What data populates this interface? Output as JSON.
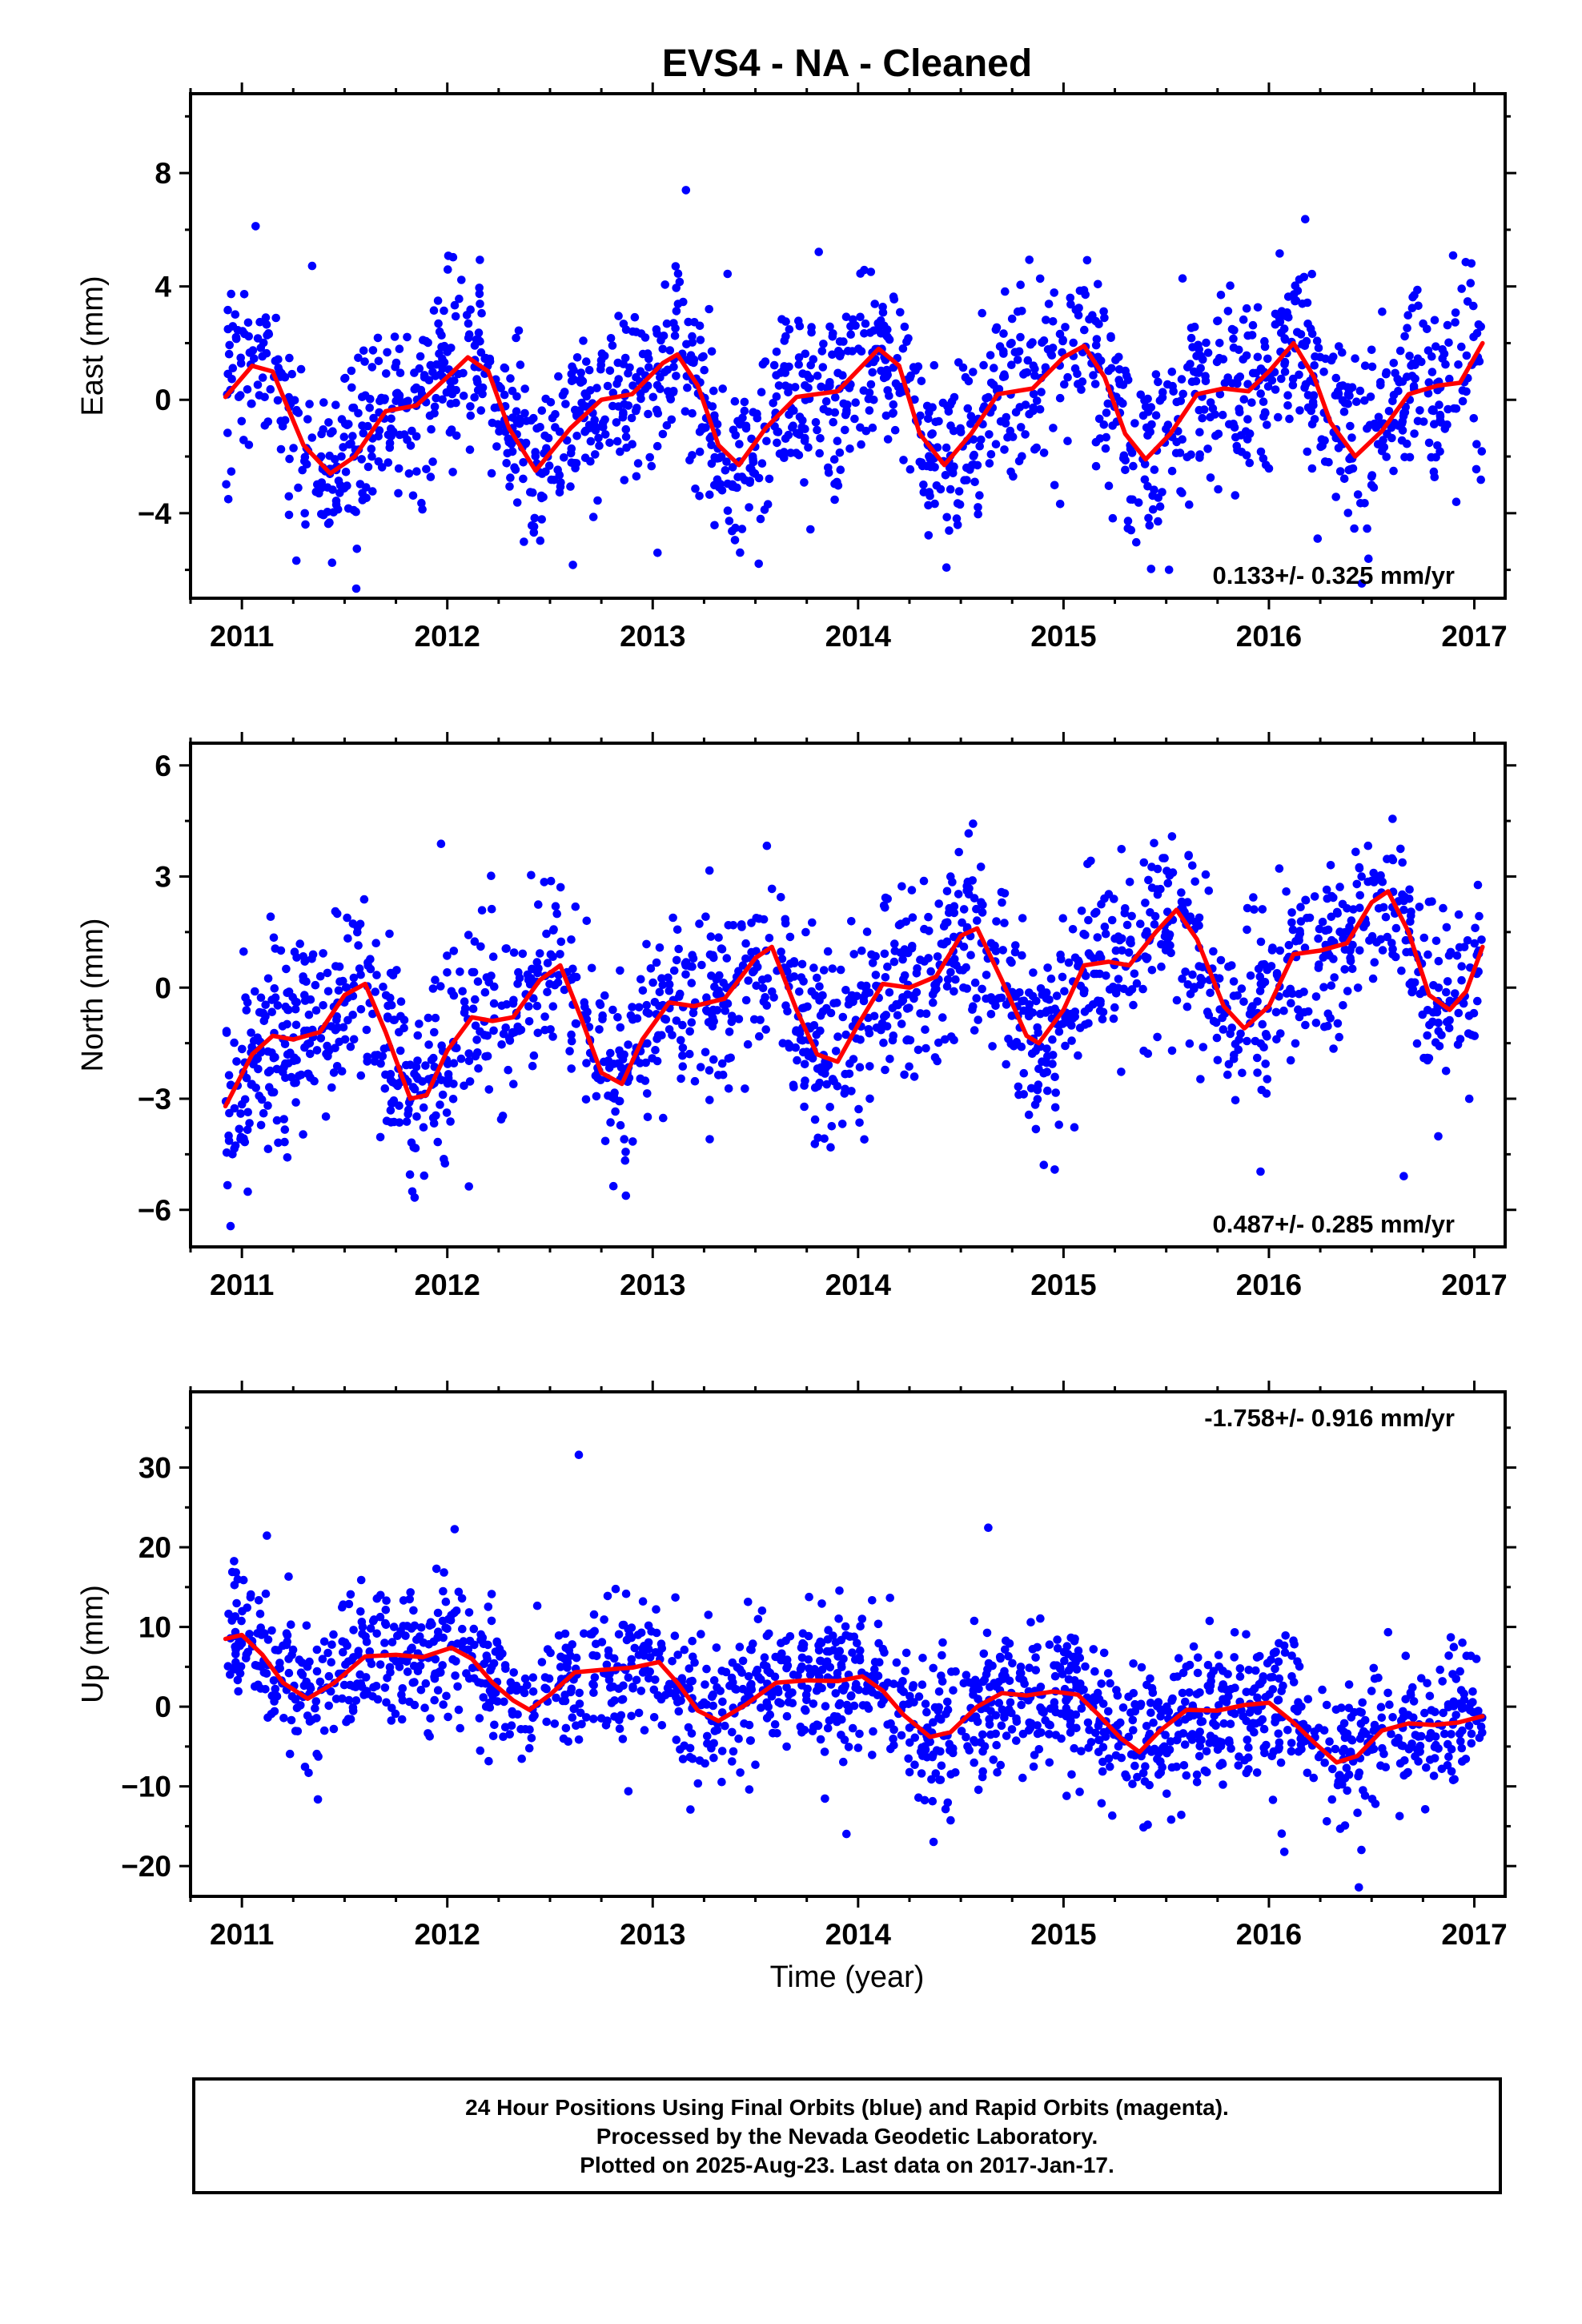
{
  "title": "EVS4  - NA - Cleaned",
  "xlabel": "Time (year)",
  "caption": {
    "line1": "24 Hour Positions Using Final Orbits (blue) and Rapid Orbits (magenta).",
    "line2": "Processed by the Nevada Geodetic Laboratory.",
    "line3": "Plotted on 2025-Aug-23. Last data on 2017-Jan-17."
  },
  "colors": {
    "points": "#0000ff",
    "model": "#ff0000",
    "frame": "#000000"
  },
  "chart_data": [
    {
      "type": "scatter",
      "ylabel": "East (mm)",
      "xlim": [
        2010.75,
        2017.15
      ],
      "ylim": [
        -7.0,
        10.8
      ],
      "yticks": [
        -4,
        0,
        4,
        8
      ],
      "yticks_minor": [
        -6,
        -2,
        2,
        6,
        10
      ],
      "xticks": [
        2011,
        2012,
        2013,
        2014,
        2015,
        2016,
        2017
      ],
      "rate": "0.133+/- 0.325 mm/yr",
      "rate_position": "bottom-right",
      "series": [
        {
          "kind": "points",
          "generated_from": {
            "time_range": [
              2010.92,
              2017.04
            ],
            "noise": 1.6,
            "seed": 11,
            "count": 1700
          }
        },
        {
          "kind": "model",
          "curve": [
            [
              2010.92,
              0.1
            ],
            [
              2011.05,
              1.2
            ],
            [
              2011.15,
              1.0
            ],
            [
              2011.3,
              -1.6
            ],
            [
              2011.43,
              -2.6
            ],
            [
              2011.55,
              -2.0
            ],
            [
              2011.7,
              -0.4
            ],
            [
              2011.85,
              -0.2
            ],
            [
              2012.0,
              0.8
            ],
            [
              2012.1,
              1.5
            ],
            [
              2012.2,
              1.0
            ],
            [
              2012.3,
              -1.0
            ],
            [
              2012.43,
              -2.5
            ],
            [
              2012.6,
              -1.0
            ],
            [
              2012.75,
              0.0
            ],
            [
              2012.9,
              0.2
            ],
            [
              2013.05,
              1.3
            ],
            [
              2013.12,
              1.6
            ],
            [
              2013.22,
              0.5
            ],
            [
              2013.32,
              -1.6
            ],
            [
              2013.42,
              -2.3
            ],
            [
              2013.55,
              -1.0
            ],
            [
              2013.7,
              0.1
            ],
            [
              2013.9,
              0.3
            ],
            [
              2014.1,
              1.8
            ],
            [
              2014.2,
              1.2
            ],
            [
              2014.3,
              -1.2
            ],
            [
              2014.42,
              -2.3
            ],
            [
              2014.55,
              -1.2
            ],
            [
              2014.68,
              0.2
            ],
            [
              2014.85,
              0.4
            ],
            [
              2015.0,
              1.5
            ],
            [
              2015.1,
              1.9
            ],
            [
              2015.2,
              0.8
            ],
            [
              2015.3,
              -1.2
            ],
            [
              2015.4,
              -2.1
            ],
            [
              2015.52,
              -1.2
            ],
            [
              2015.65,
              0.2
            ],
            [
              2015.78,
              0.4
            ],
            [
              2015.9,
              0.3
            ],
            [
              2016.0,
              1.0
            ],
            [
              2016.12,
              2.0
            ],
            [
              2016.22,
              0.8
            ],
            [
              2016.3,
              -0.8
            ],
            [
              2016.42,
              -2.0
            ],
            [
              2016.55,
              -1.1
            ],
            [
              2016.68,
              0.2
            ],
            [
              2016.82,
              0.5
            ],
            [
              2016.93,
              0.6
            ],
            [
              2017.04,
              2.0
            ]
          ]
        }
      ]
    },
    {
      "type": "scatter",
      "ylabel": "North (mm)",
      "xlim": [
        2010.75,
        2017.15
      ],
      "ylim": [
        -7.0,
        6.6
      ],
      "yticks": [
        -6,
        -3,
        0,
        3,
        6
      ],
      "yticks_minor": [
        -4.5,
        -1.5,
        1.5,
        4.5
      ],
      "xticks": [
        2011,
        2012,
        2013,
        2014,
        2015,
        2016,
        2017
      ],
      "rate": "0.487+/- 0.285 mm/yr",
      "rate_position": "bottom-right",
      "series": [
        {
          "kind": "points",
          "generated_from": {
            "time_range": [
              2010.92,
              2017.04
            ],
            "noise": 1.25,
            "seed": 23,
            "count": 1700
          }
        },
        {
          "kind": "model",
          "curve": [
            [
              2010.92,
              -3.2
            ],
            [
              2011.05,
              -1.8
            ],
            [
              2011.15,
              -1.3
            ],
            [
              2011.25,
              -1.4
            ],
            [
              2011.38,
              -1.2
            ],
            [
              2011.5,
              -0.2
            ],
            [
              2011.6,
              0.1
            ],
            [
              2011.7,
              -1.2
            ],
            [
              2011.82,
              -3.0
            ],
            [
              2011.9,
              -2.9
            ],
            [
              2012.0,
              -1.7
            ],
            [
              2012.12,
              -0.8
            ],
            [
              2012.22,
              -0.9
            ],
            [
              2012.32,
              -0.8
            ],
            [
              2012.45,
              0.2
            ],
            [
              2012.55,
              0.6
            ],
            [
              2012.65,
              -0.8
            ],
            [
              2012.75,
              -2.3
            ],
            [
              2012.85,
              -2.6
            ],
            [
              2012.95,
              -1.4
            ],
            [
              2013.08,
              -0.4
            ],
            [
              2013.2,
              -0.5
            ],
            [
              2013.35,
              -0.3
            ],
            [
              2013.5,
              0.8
            ],
            [
              2013.58,
              1.1
            ],
            [
              2013.7,
              -0.6
            ],
            [
              2013.8,
              -1.8
            ],
            [
              2013.9,
              -2.0
            ],
            [
              2014.0,
              -1.0
            ],
            [
              2014.12,
              0.1
            ],
            [
              2014.25,
              0.0
            ],
            [
              2014.38,
              0.3
            ],
            [
              2014.5,
              1.4
            ],
            [
              2014.58,
              1.6
            ],
            [
              2014.7,
              0.2
            ],
            [
              2014.82,
              -1.3
            ],
            [
              2014.88,
              -1.5
            ],
            [
              2015.0,
              -0.6
            ],
            [
              2015.1,
              0.6
            ],
            [
              2015.22,
              0.7
            ],
            [
              2015.32,
              0.6
            ],
            [
              2015.45,
              1.5
            ],
            [
              2015.55,
              2.1
            ],
            [
              2015.65,
              1.3
            ],
            [
              2015.78,
              -0.5
            ],
            [
              2015.88,
              -1.1
            ],
            [
              2016.0,
              -0.5
            ],
            [
              2016.12,
              0.9
            ],
            [
              2016.25,
              1.0
            ],
            [
              2016.38,
              1.2
            ],
            [
              2016.5,
              2.3
            ],
            [
              2016.58,
              2.6
            ],
            [
              2016.68,
              1.5
            ],
            [
              2016.78,
              -0.2
            ],
            [
              2016.88,
              -0.6
            ],
            [
              2016.96,
              -0.1
            ],
            [
              2017.04,
              1.1
            ]
          ]
        }
      ]
    },
    {
      "type": "scatter",
      "ylabel": "Up (mm)",
      "xlim": [
        2010.75,
        2017.15
      ],
      "ylim": [
        -23.8,
        39.5
      ],
      "yticks": [
        -20,
        -10,
        0,
        10,
        20,
        30
      ],
      "yticks_minor": [
        -15,
        -5,
        5,
        15,
        25,
        35
      ],
      "xticks": [
        2011,
        2012,
        2013,
        2014,
        2015,
        2016,
        2017
      ],
      "rate": "-1.758+/- 0.916 mm/yr",
      "rate_position": "top-right",
      "series": [
        {
          "kind": "points",
          "generated_from": {
            "time_range": [
              2010.92,
              2017.04
            ],
            "noise": 4.6,
            "seed": 37,
            "count": 1700
          }
        },
        {
          "kind": "model",
          "curve": [
            [
              2010.92,
              8.5
            ],
            [
              2011.0,
              9.0
            ],
            [
              2011.1,
              6.5
            ],
            [
              2011.2,
              3.0
            ],
            [
              2011.32,
              1.0
            ],
            [
              2011.45,
              3.0
            ],
            [
              2011.6,
              6.3
            ],
            [
              2011.75,
              6.5
            ],
            [
              2011.88,
              6.2
            ],
            [
              2012.02,
              7.4
            ],
            [
              2012.12,
              6.0
            ],
            [
              2012.22,
              3.0
            ],
            [
              2012.32,
              0.8
            ],
            [
              2012.4,
              -0.4
            ],
            [
              2012.5,
              1.5
            ],
            [
              2012.62,
              4.3
            ],
            [
              2012.75,
              4.6
            ],
            [
              2012.9,
              4.9
            ],
            [
              2013.03,
              5.6
            ],
            [
              2013.12,
              3.0
            ],
            [
              2013.22,
              -0.5
            ],
            [
              2013.32,
              -1.8
            ],
            [
              2013.45,
              0.2
            ],
            [
              2013.6,
              3.0
            ],
            [
              2013.75,
              3.3
            ],
            [
              2013.9,
              3.2
            ],
            [
              2014.02,
              3.8
            ],
            [
              2014.12,
              2.0
            ],
            [
              2014.22,
              -1.0
            ],
            [
              2014.35,
              -3.8
            ],
            [
              2014.45,
              -3.2
            ],
            [
              2014.58,
              0.0
            ],
            [
              2014.7,
              1.7
            ],
            [
              2014.82,
              1.4
            ],
            [
              2014.95,
              1.9
            ],
            [
              2015.07,
              1.5
            ],
            [
              2015.17,
              -1.0
            ],
            [
              2015.28,
              -4.0
            ],
            [
              2015.37,
              -5.7
            ],
            [
              2015.47,
              -3.0
            ],
            [
              2015.6,
              -0.4
            ],
            [
              2015.75,
              -0.5
            ],
            [
              2015.88,
              0.2
            ],
            [
              2016.0,
              0.5
            ],
            [
              2016.12,
              -2.0
            ],
            [
              2016.22,
              -4.5
            ],
            [
              2016.33,
              -7.0
            ],
            [
              2016.43,
              -6.2
            ],
            [
              2016.55,
              -3.0
            ],
            [
              2016.68,
              -2.1
            ],
            [
              2016.8,
              -2.3
            ],
            [
              2016.92,
              -2.0
            ],
            [
              2017.04,
              -1.2
            ]
          ]
        }
      ]
    }
  ]
}
